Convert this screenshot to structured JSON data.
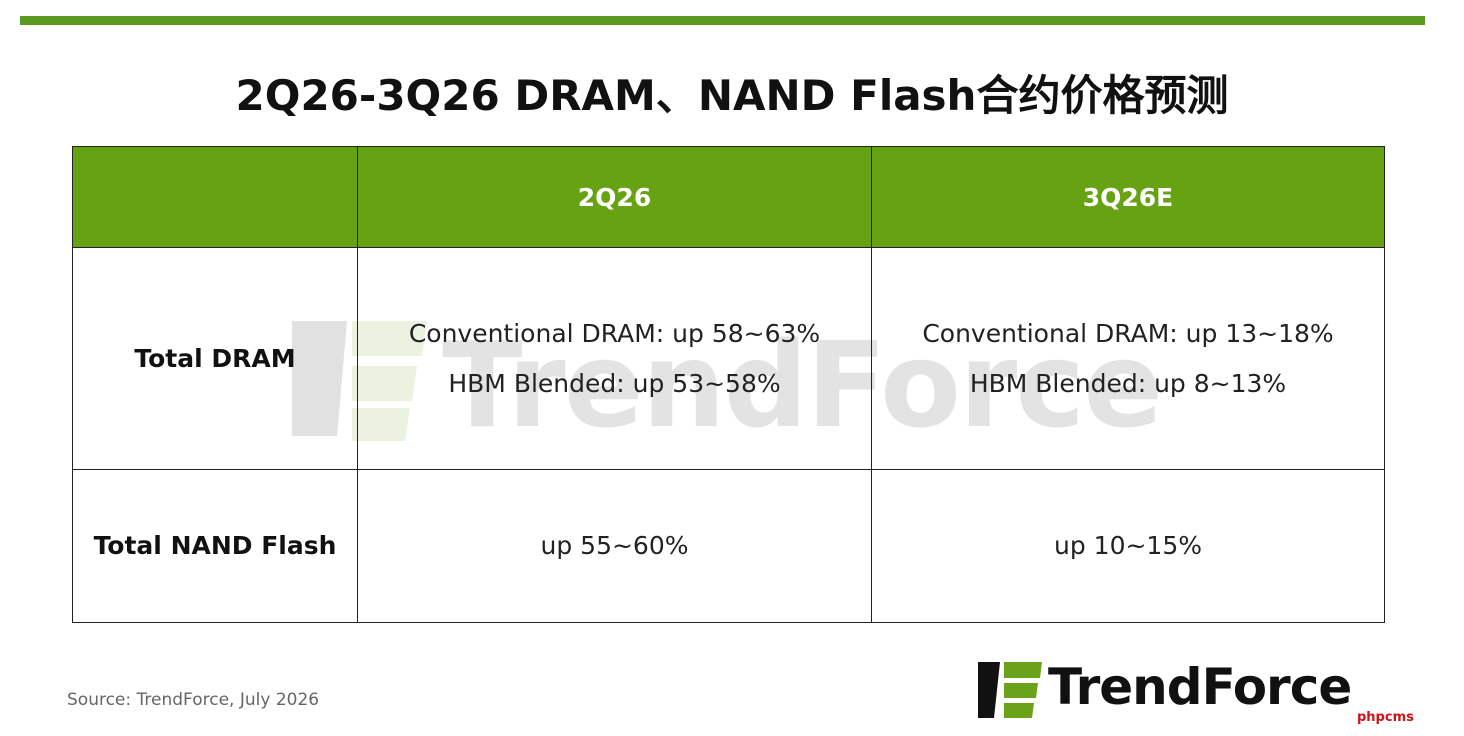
{
  "header": {
    "title": "2Q26-3Q26 DRAM、NAND Flash合约价格预测"
  },
  "table": {
    "columns": [
      "",
      "2Q26",
      "3Q26E"
    ],
    "rows": [
      {
        "label": "Total DRAM",
        "cells": [
          [
            "Conventional DRAM: up 58~63%",
            "HBM Blended: up 53~58%"
          ],
          [
            "Conventional DRAM: up 13~18%",
            "HBM Blended: up 8~13%"
          ]
        ]
      },
      {
        "label": "Total NAND Flash",
        "cells": [
          [
            "up 55~60%"
          ],
          [
            "up 10~15%"
          ]
        ]
      }
    ]
  },
  "watermark": "TrendForce",
  "footer": {
    "source": "Source: TrendForce, July 2026",
    "logo": "TrendForce",
    "site_mark": "phpcms"
  }
}
